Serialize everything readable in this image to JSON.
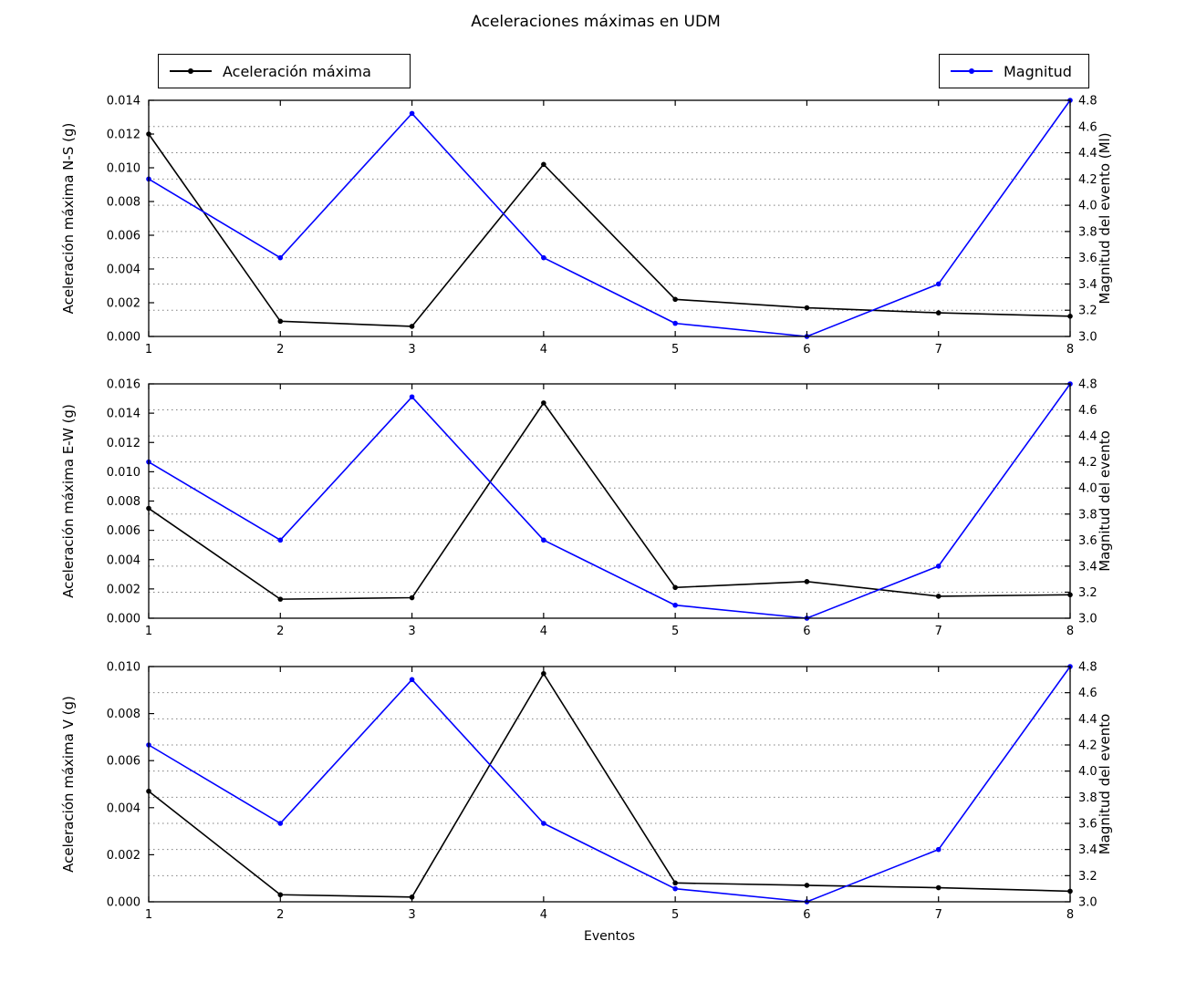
{
  "title": "Aceleraciones máximas en UDM",
  "xlabel": "Eventos",
  "legend": {
    "accel_label": "Aceleración máxima",
    "magnitud_label": "Magnitud"
  },
  "colors": {
    "accel": "#000000",
    "magnitud": "#0000ff",
    "grid": "#808080",
    "axis": "#000000",
    "background": "#ffffff"
  },
  "chart_data": [
    {
      "type": "line",
      "x": [
        1,
        2,
        3,
        4,
        5,
        6,
        7,
        8
      ],
      "xtick_labels": [
        "1",
        "2",
        "3",
        "4",
        "5",
        "6",
        "7",
        "8"
      ],
      "ylabel_left": "Aceleración máxima N-S (g)",
      "ylabel_right": "Magnitud del evento (Ml)",
      "ylim_left": [
        0.0,
        0.014
      ],
      "ylim_right": [
        3.0,
        4.8
      ],
      "ytick_labels_left": [
        "0.000",
        "0.002",
        "0.004",
        "0.006",
        "0.008",
        "0.010",
        "0.012",
        "0.014"
      ],
      "ytick_labels_right": [
        "3.0",
        "3.2",
        "3.4",
        "3.6",
        "3.8",
        "4.0",
        "4.2",
        "4.4",
        "4.6",
        "4.8"
      ],
      "grid": "dotted horizontal lines at right-axis ticks",
      "series": [
        {
          "name": "Aceleración máxima",
          "axis": "left",
          "color": "#000000",
          "values": [
            0.012,
            0.0009,
            0.0006,
            0.0102,
            0.0022,
            0.0017,
            0.0014,
            0.0012
          ]
        },
        {
          "name": "Magnitud",
          "axis": "right",
          "color": "#0000ff",
          "values": [
            4.2,
            3.6,
            4.7,
            3.6,
            3.1,
            3.0,
            3.4,
            4.8
          ]
        }
      ]
    },
    {
      "type": "line",
      "x": [
        1,
        2,
        3,
        4,
        5,
        6,
        7,
        8
      ],
      "xtick_labels": [
        "1",
        "2",
        "3",
        "4",
        "5",
        "6",
        "7",
        "8"
      ],
      "ylabel_left": "Aceleración máxima E-W (g)",
      "ylabel_right": "Magnitud del evento",
      "ylim_left": [
        0.0,
        0.016
      ],
      "ylim_right": [
        3.0,
        4.8
      ],
      "ytick_labels_left": [
        "0.000",
        "0.002",
        "0.004",
        "0.006",
        "0.008",
        "0.010",
        "0.012",
        "0.014",
        "0.016"
      ],
      "ytick_labels_right": [
        "3.0",
        "3.2",
        "3.4",
        "3.6",
        "3.8",
        "4.0",
        "4.2",
        "4.4",
        "4.6",
        "4.8"
      ],
      "grid": "dotted horizontal lines at right-axis ticks",
      "series": [
        {
          "name": "Aceleración máxima",
          "axis": "left",
          "color": "#000000",
          "values": [
            0.0075,
            0.0013,
            0.0014,
            0.0147,
            0.0021,
            0.0025,
            0.0015,
            0.0016
          ]
        },
        {
          "name": "Magnitud",
          "axis": "right",
          "color": "#0000ff",
          "values": [
            4.2,
            3.6,
            4.7,
            3.6,
            3.1,
            3.0,
            3.4,
            4.8
          ]
        }
      ]
    },
    {
      "type": "line",
      "x": [
        1,
        2,
        3,
        4,
        5,
        6,
        7,
        8
      ],
      "xtick_labels": [
        "1",
        "2",
        "3",
        "4",
        "5",
        "6",
        "7",
        "8"
      ],
      "ylabel_left": "Aceleración máxima V (g)",
      "ylabel_right": "Magnitud del evento",
      "ylim_left": [
        0.0,
        0.01
      ],
      "ylim_right": [
        3.0,
        4.8
      ],
      "ytick_labels_left": [
        "0.000",
        "0.002",
        "0.004",
        "0.006",
        "0.008",
        "0.010"
      ],
      "ytick_labels_right": [
        "3.0",
        "3.2",
        "3.4",
        "3.6",
        "3.8",
        "4.0",
        "4.2",
        "4.4",
        "4.6",
        "4.8"
      ],
      "grid": "dotted horizontal lines at right-axis ticks",
      "series": [
        {
          "name": "Aceleración máxima",
          "axis": "left",
          "color": "#000000",
          "values": [
            0.0047,
            0.0003,
            0.0002,
            0.0097,
            0.0008,
            0.0007,
            0.0006,
            0.00045
          ]
        },
        {
          "name": "Magnitud",
          "axis": "right",
          "color": "#0000ff",
          "values": [
            4.2,
            3.6,
            4.7,
            3.6,
            3.1,
            3.0,
            3.4,
            4.8
          ]
        }
      ]
    }
  ]
}
